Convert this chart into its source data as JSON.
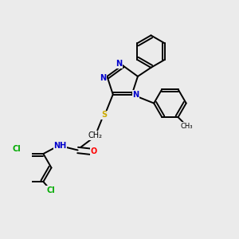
{
  "bg_color": "#ebebeb",
  "bond_color": "#000000",
  "bond_lw": 1.4,
  "atom_colors": {
    "N": "#0000cc",
    "O": "#ff0000",
    "S": "#ccaa00",
    "Cl": "#00aa00",
    "C": "#000000"
  },
  "font_size": 7.0,
  "xlim": [
    -2.5,
    3.5
  ],
  "ylim": [
    -4.5,
    3.5
  ]
}
